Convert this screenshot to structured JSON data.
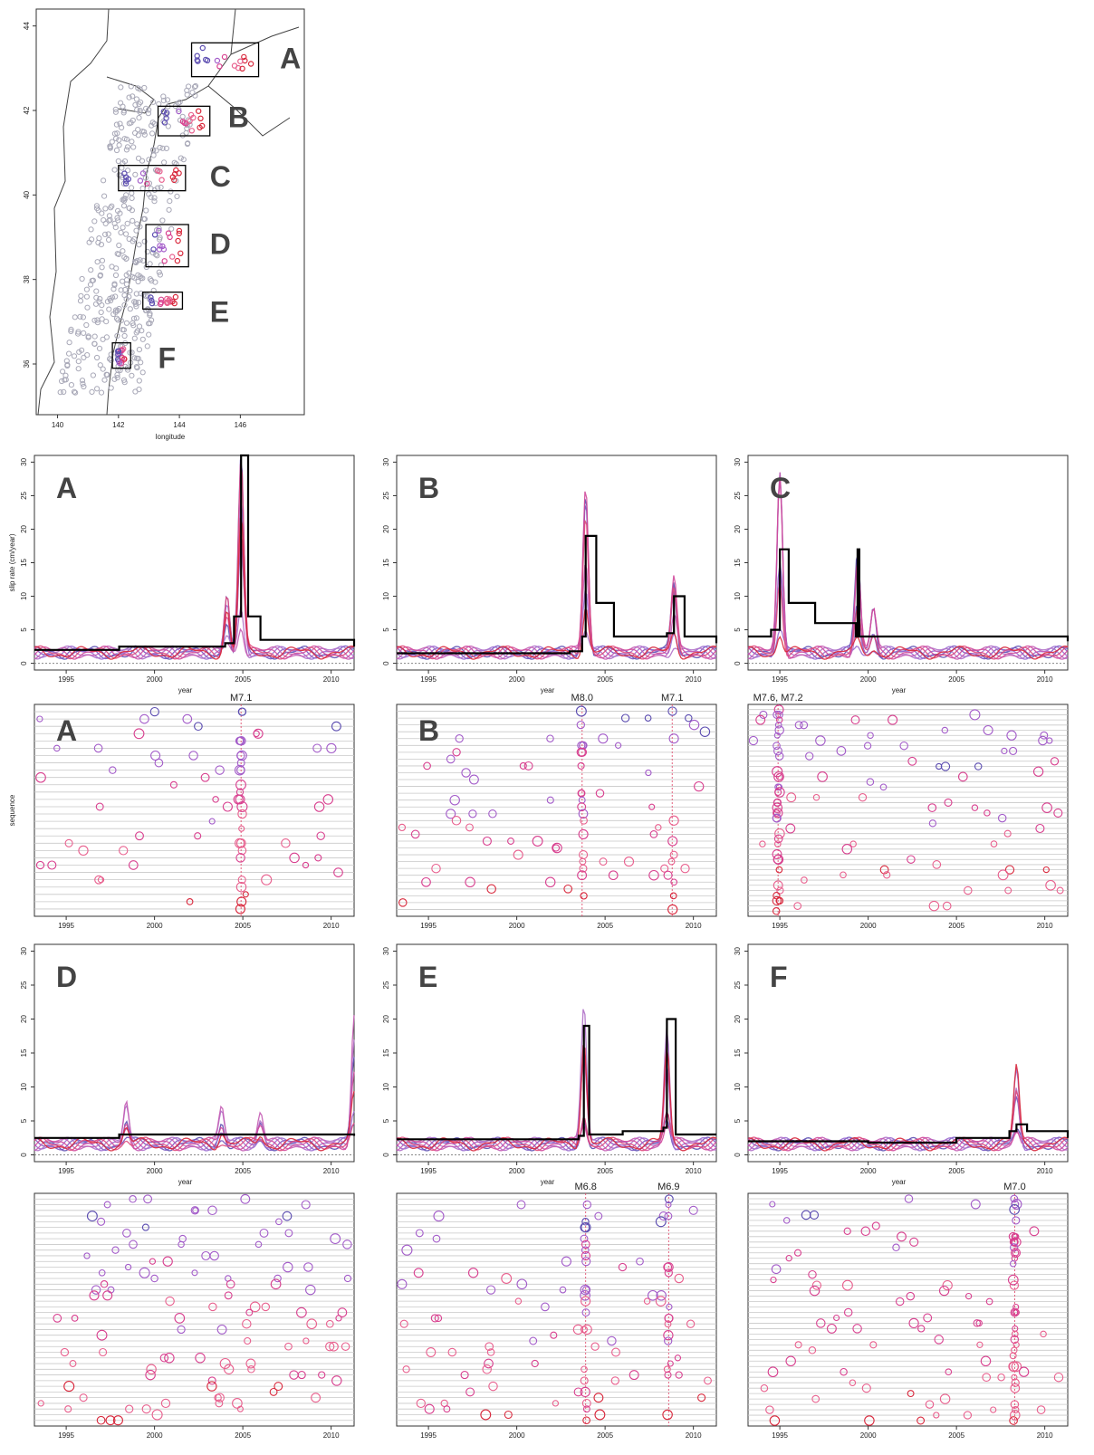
{
  "map": {
    "x_ticks": [
      "140",
      "142",
      "144",
      "146"
    ],
    "y_ticks": [
      "36",
      "38",
      "40",
      "42",
      "44"
    ],
    "xlabel": "longitude",
    "regions": [
      {
        "label": "A",
        "lon": [
          144.4,
          146.6
        ],
        "lat": [
          42.8,
          43.6
        ],
        "label_lon": 147.3,
        "label_lat": 43.0
      },
      {
        "label": "B",
        "lon": [
          143.3,
          145.0
        ],
        "lat": [
          41.4,
          42.1
        ],
        "label_lon": 145.6,
        "label_lat": 41.6
      },
      {
        "label": "C",
        "lon": [
          142.0,
          144.2
        ],
        "lat": [
          40.1,
          40.7
        ],
        "label_lon": 145.0,
        "label_lat": 40.2
      },
      {
        "label": "D",
        "lon": [
          142.9,
          144.3
        ],
        "lat": [
          38.3,
          39.3
        ],
        "label_lon": 145.0,
        "label_lat": 38.6
      },
      {
        "label": "E",
        "lon": [
          142.8,
          144.1
        ],
        "lat": [
          37.3,
          37.7
        ],
        "label_lon": 145.0,
        "label_lat": 37.0
      },
      {
        "label": "F",
        "lon": [
          141.8,
          142.4
        ],
        "lat": [
          35.9,
          36.5
        ],
        "label_lon": 143.3,
        "label_lat": 35.9
      }
    ]
  },
  "chart_data": [
    {
      "type": "line",
      "panel": "A",
      "xlabel": "year",
      "ylabel": "slip rate (cm/year)",
      "xlim": [
        1993.2,
        2011.3
      ],
      "ylim": [
        -1,
        31
      ],
      "x_ticks": [
        "1995",
        "2000",
        "2005",
        "2010"
      ],
      "y_ticks": [
        "0",
        "5",
        "10",
        "15",
        "20",
        "25",
        "30"
      ],
      "peaks": [
        {
          "x": 2004.9,
          "y": 31
        },
        {
          "x": 2004.1,
          "y": 11
        }
      ],
      "black_line": {
        "x": [
          1993.2,
          1998,
          2002,
          2004,
          2004.5,
          2004.9,
          2005.3,
          2006,
          2011.3
        ],
        "y": [
          2,
          2.5,
          2.5,
          3,
          7,
          31,
          7,
          3.5,
          2.5
        ]
      }
    },
    {
      "type": "line",
      "panel": "B",
      "xlabel": "year",
      "xlim": [
        1993.2,
        2011.3
      ],
      "ylim": [
        -1,
        31
      ],
      "x_ticks": [
        "1995",
        "2000",
        "2005",
        "2010"
      ],
      "y_ticks": [
        "0",
        "5",
        "10",
        "15",
        "20",
        "25",
        "30"
      ],
      "peaks": [
        {
          "x": 2003.9,
          "y": 28
        },
        {
          "x": 2008.9,
          "y": 13
        }
      ],
      "black_line": {
        "x": [
          1993.2,
          2003,
          2003.7,
          2003.9,
          2004.5,
          2005.5,
          2008.5,
          2008.9,
          2009.5,
          2011.3
        ],
        "y": [
          1.5,
          1.8,
          4,
          19,
          9,
          4,
          4.5,
          10,
          4,
          3
        ]
      }
    },
    {
      "type": "line",
      "panel": "C",
      "xlabel": "year",
      "xlim": [
        1993.2,
        2011.3
      ],
      "ylim": [
        -1,
        31
      ],
      "x_ticks": [
        "1995",
        "2000",
        "2005",
        "2010"
      ],
      "y_ticks": [
        "0",
        "5",
        "10",
        "15",
        "20",
        "25",
        "30"
      ],
      "peaks": [
        {
          "x": 1995.0,
          "y": 31
        },
        {
          "x": 1999.4,
          "y": 17
        },
        {
          "x": 2000.3,
          "y": 9
        }
      ],
      "black_line": {
        "x": [
          1993.2,
          1994.5,
          1995.0,
          1995.5,
          1997,
          1999.3,
          1999.4,
          1999.5,
          2001,
          2011.3
        ],
        "y": [
          4,
          5,
          17,
          9,
          6,
          4,
          17,
          4,
          4,
          3.3
        ]
      }
    },
    {
      "type": "line",
      "panel": "D",
      "xlabel": "year",
      "xlim": [
        1993.2,
        2011.3
      ],
      "ylim": [
        -1,
        31
      ],
      "x_ticks": [
        "1995",
        "2000",
        "2005",
        "2010"
      ],
      "y_ticks": [
        "0",
        "5",
        "10",
        "15",
        "20",
        "25",
        "30"
      ],
      "peaks": [
        {
          "x": 1998.4,
          "y": 8.5
        },
        {
          "x": 2003.8,
          "y": 7.5
        },
        {
          "x": 2006.0,
          "y": 6.5
        },
        {
          "x": 2011.3,
          "y": 22
        }
      ],
      "black_line": {
        "x": [
          1993.2,
          1998,
          2003,
          2008,
          2011.3
        ],
        "y": [
          2.5,
          3,
          3,
          3,
          2.8
        ]
      }
    },
    {
      "type": "line",
      "panel": "E",
      "xlabel": "year",
      "xlim": [
        1993.2,
        2011.3
      ],
      "ylim": [
        -1,
        31
      ],
      "x_ticks": [
        "1995",
        "2000",
        "2005",
        "2010"
      ],
      "y_ticks": [
        "0",
        "5",
        "10",
        "15",
        "20",
        "25",
        "30"
      ],
      "peaks": [
        {
          "x": 2003.8,
          "y": 22
        },
        {
          "x": 2008.5,
          "y": 20
        }
      ],
      "black_line": {
        "x": [
          1993.2,
          2003.5,
          2003.8,
          2004.1,
          2006,
          2008.3,
          2008.5,
          2009,
          2011.3
        ],
        "y": [
          2.3,
          2.8,
          19,
          3,
          3.5,
          4,
          20,
          3,
          3
        ]
      }
    },
    {
      "type": "line",
      "panel": "F",
      "xlabel": "year",
      "xlim": [
        1993.2,
        2011.3
      ],
      "ylim": [
        -1,
        31
      ],
      "x_ticks": [
        "1995",
        "2000",
        "2005",
        "2010"
      ],
      "y_ticks": [
        "0",
        "5",
        "10",
        "15",
        "20",
        "25",
        "30"
      ],
      "peaks": [
        {
          "x": 2008.4,
          "y": 13.5
        }
      ],
      "black_line": {
        "x": [
          1993.2,
          2000,
          2005,
          2008,
          2008.4,
          2009,
          2011.3
        ],
        "y": [
          2,
          1.8,
          2.5,
          3.5,
          4.5,
          3.5,
          2.5
        ]
      }
    }
  ],
  "sequence_panels": [
    {
      "panel": "A",
      "big_label": "A",
      "ylabel": "sequence",
      "rows": 28,
      "quakes": [
        {
          "label": "M7.1",
          "x": 2004.9
        }
      ],
      "x_ticks": [
        "1995",
        "2000",
        "2005",
        "2010"
      ]
    },
    {
      "panel": "B",
      "big_label": "B",
      "rows": 30,
      "quakes": [
        {
          "label": "M8.0",
          "x": 2003.7
        },
        {
          "label": "M7.1",
          "x": 2008.8
        }
      ],
      "x_ticks": [
        "1995",
        "2000",
        "2005",
        "2010"
      ]
    },
    {
      "panel": "C",
      "big_label": "",
      "rows": 40,
      "quakes": [
        {
          "label": "M7.6, M7.2",
          "x": 1994.9
        }
      ],
      "x_ticks": [
        "1995",
        "2000",
        "2005",
        "2010"
      ]
    },
    {
      "panel": "D",
      "big_label": "",
      "rows": 40,
      "quakes": [],
      "x_ticks": [
        "1995",
        "2000",
        "2005",
        "2010"
      ]
    },
    {
      "panel": "E",
      "big_label": "",
      "rows": 40,
      "quakes": [
        {
          "label": "M6.8",
          "x": 2003.9
        },
        {
          "label": "M6.9",
          "x": 2008.6
        }
      ],
      "x_ticks": [
        "1995",
        "2000",
        "2005",
        "2010"
      ]
    },
    {
      "panel": "F",
      "big_label": "",
      "rows": 42,
      "quakes": [
        {
          "label": "M7.0",
          "x": 2008.3
        }
      ],
      "x_ticks": [
        "1995",
        "2000",
        "2005",
        "2010"
      ]
    }
  ],
  "colors": {
    "blue": "#5b4cb0",
    "purple": "#a35cc9",
    "magenta": "#d8408f",
    "pink": "#e8608e",
    "red": "#d8283c",
    "black": "#000000",
    "gray": "#a9a9b8",
    "quake_line": "#e05070"
  }
}
